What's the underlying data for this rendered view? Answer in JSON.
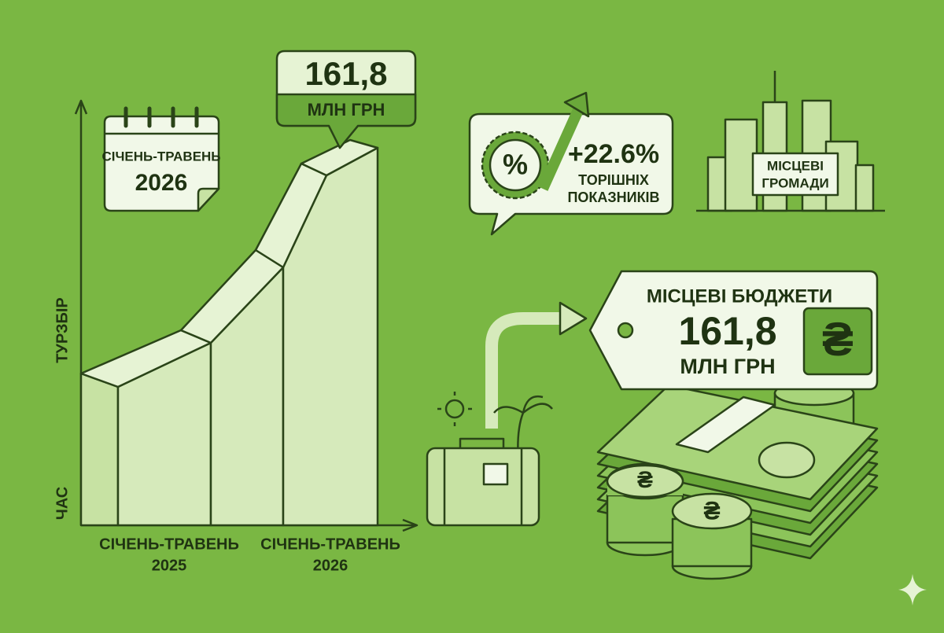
{
  "growth_chart": {
    "y_axis_label": "ТУРЗБІР",
    "x_axis_label": "ЧАС",
    "categories": [
      {
        "period": "СІЧЕНЬ-ТРАВЕНЬ",
        "year": "2025"
      },
      {
        "period": "СІЧЕНЬ-ТРАВЕНЬ",
        "year": "2026"
      }
    ],
    "callout": {
      "value": "161,8",
      "unit": "МЛН ГРН"
    }
  },
  "calendar": {
    "period": "СІЧЕНЬ-ТРАВЕНЬ",
    "year": "2026"
  },
  "growth_badge": {
    "icon": "%",
    "change": "+22.6%",
    "caption": [
      "ТОРІШНІХ",
      "ПОКАЗНИКІВ"
    ]
  },
  "communities": {
    "label": [
      "МІСЦЕВІ",
      "ГРОМАДИ"
    ]
  },
  "budget_tag": {
    "title": "МІСЦЕВІ БЮДЖЕТИ",
    "value": "161,8",
    "unit": "МЛН ГРН",
    "currency": "₴"
  }
}
